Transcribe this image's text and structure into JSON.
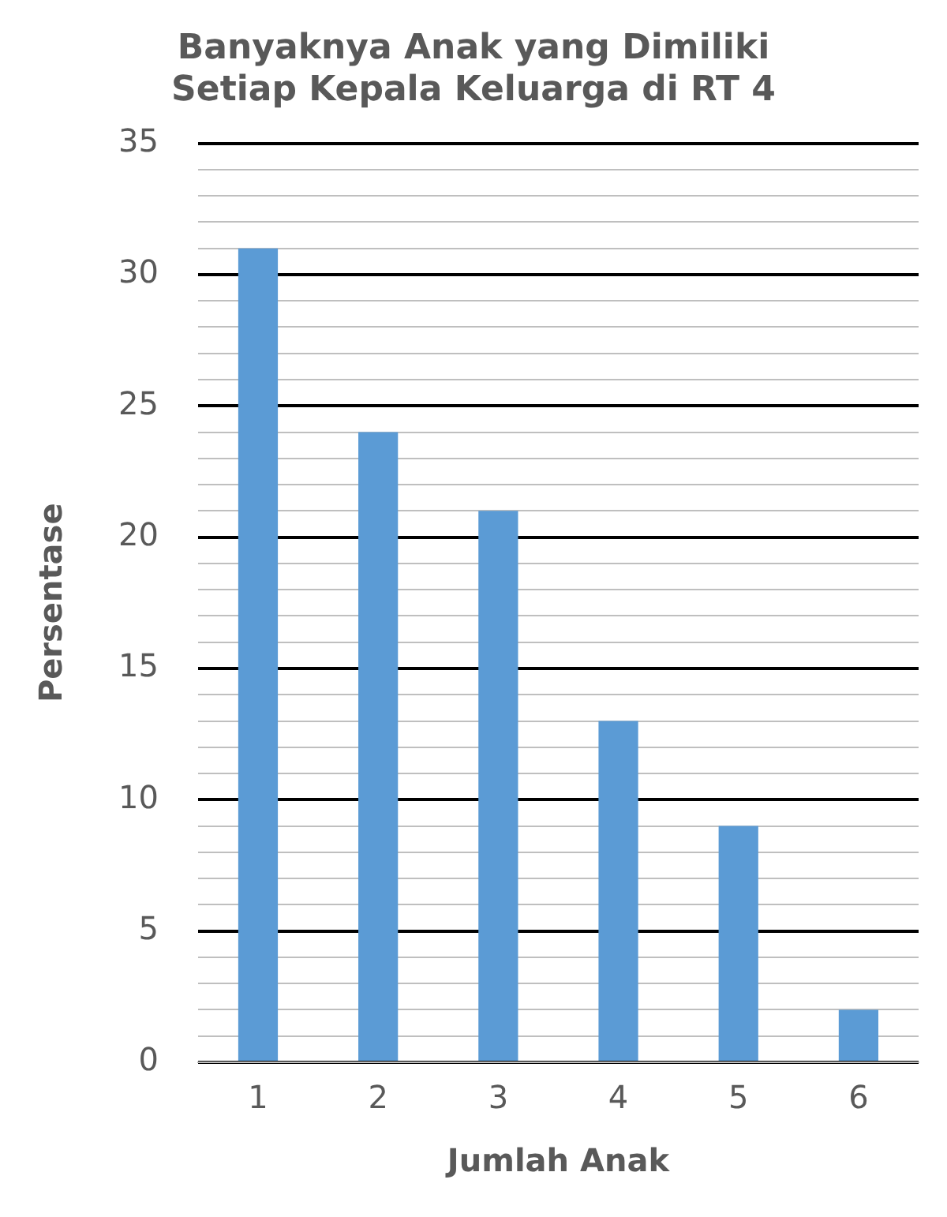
{
  "chart_data": {
    "type": "bar",
    "title": "Banyaknya Anak yang Dimiliki\nSetiap Kepala Keluarga di RT 4",
    "xlabel": "Jumlah Anak",
    "ylabel": "Persentase",
    "categories": [
      "1",
      "2",
      "3",
      "4",
      "5",
      "6"
    ],
    "values": [
      31,
      24,
      21,
      13,
      9,
      2
    ],
    "color": "#5b9bd5",
    "ylim": [
      0,
      35
    ],
    "yticks": [
      0,
      {
        "value": 1,
        "label": null
      },
      {
        "value": 2,
        "label": null
      },
      {
        "value": 3,
        "label": null
      },
      {
        "value": 4,
        "label": null
      },
      5,
      {
        "value": 6,
        "label": null
      },
      {
        "value": 7,
        "label": null
      },
      {
        "value": 8,
        "label": null
      },
      {
        "value": 9,
        "label": null
      },
      10,
      {
        "value": 11,
        "label": null
      },
      {
        "value": 12,
        "label": null
      },
      {
        "value": 13,
        "label": null
      },
      {
        "value": 14,
        "label": null
      },
      15,
      {
        "value": 16,
        "label": null
      },
      {
        "value": 17,
        "label": null
      },
      {
        "value": 18,
        "label": null
      },
      {
        "value": 19,
        "label": null
      },
      20,
      {
        "value": 21,
        "label": null
      },
      {
        "value": 22,
        "label": null
      },
      {
        "value": 23,
        "label": null
      },
      {
        "value": 24,
        "label": null
      },
      25,
      {
        "value": 26,
        "label": null
      },
      {
        "value": 27,
        "label": null
      },
      {
        "value": 28,
        "label": null
      },
      {
        "value": 29,
        "label": null
      },
      30,
      {
        "value": 31,
        "label": null
      },
      {
        "value": 32,
        "label": null
      },
      {
        "value": 33,
        "label": null
      },
      {
        "value": 34,
        "label": null
      },
      35
    ],
    "grid": true,
    "legend": false
  }
}
